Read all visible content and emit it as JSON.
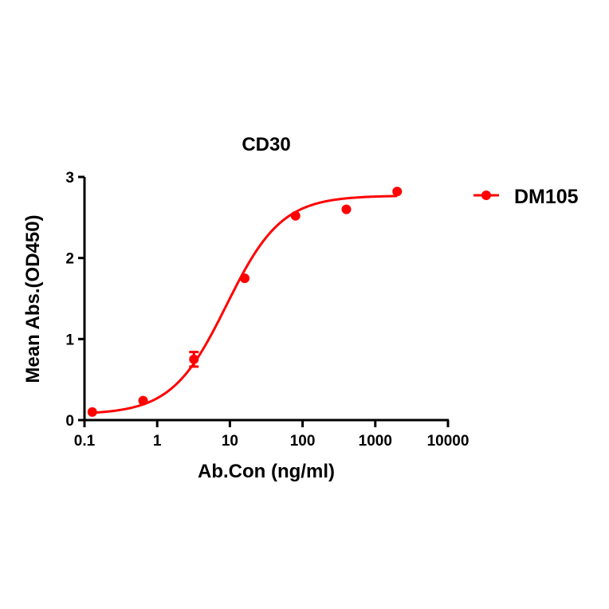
{
  "chart_data": {
    "type": "scatter",
    "title": "CD30",
    "xlabel": "Ab.Con (ng/ml)",
    "ylabel": "Mean Abs.(OD450)",
    "xscale": "log",
    "xlim": [
      0.1,
      10000
    ],
    "ylim": [
      0,
      3
    ],
    "x_ticks": [
      0.1,
      1,
      10,
      100,
      1000,
      10000
    ],
    "x_tick_labels": [
      "0.1",
      "1",
      "10",
      "100",
      "1000",
      "10000"
    ],
    "y_ticks": [
      0,
      1,
      2,
      3
    ],
    "y_tick_labels": [
      "0",
      "1",
      "2",
      "3"
    ],
    "grid": false,
    "legend_position": "right",
    "series": [
      {
        "name": "DM105",
        "color": "#ff0000",
        "x": [
          0.128,
          0.64,
          3.2,
          16,
          80,
          400,
          2000
        ],
        "values": [
          0.1,
          0.24,
          0.75,
          1.75,
          2.52,
          2.6,
          2.82
        ],
        "error": [
          0,
          0,
          0.09,
          0,
          0,
          0,
          0
        ],
        "fit": {
          "model": "4PL",
          "bottom": 0.07,
          "top": 2.77,
          "ec50": 9.0,
          "hill": 1.15
        }
      }
    ]
  }
}
